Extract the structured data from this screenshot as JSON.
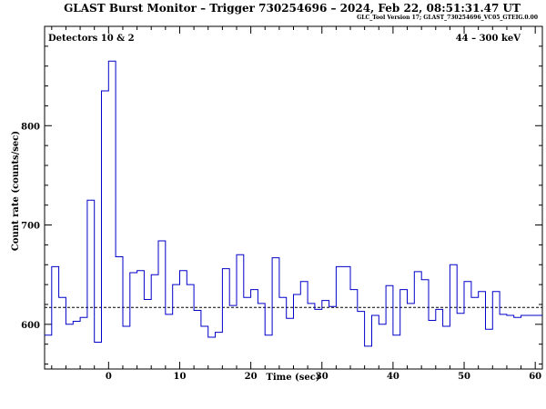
{
  "header": {
    "title": "GLAST Burst Monitor  –  Trigger 730254696  –  2024, Feb 22, 08:51:31.47 UT",
    "version": "GLC_Tool Version 17; GLAST_730254696_VC05_GTEIG.0.00"
  },
  "panel": {
    "detectors_label": "Detectors 10 & 2",
    "energy_label": "44 – 300 keV"
  },
  "colors": {
    "line": "#0000c8",
    "axes": "#000000",
    "background": "#ffffff"
  },
  "chart_data": {
    "type": "line",
    "step": true,
    "title": "GLAST Burst Monitor  –  Trigger 730254696  –  2024, Feb 22, 08:51:31.47 UT",
    "xlabel": "Time (sec)",
    "ylabel": "Count rate (counts/sec)",
    "xlim": [
      -9.0,
      61.0
    ],
    "ylim": [
      555,
      900
    ],
    "xticks": [
      0,
      10,
      20,
      30,
      40,
      50,
      60
    ],
    "yticks": [
      600,
      700,
      800
    ],
    "background_level": 617,
    "bin_edges": [
      -9.0,
      -8.0,
      -7.0,
      -6.0,
      -5.0,
      -4.0,
      -3.0,
      -2.0,
      -1.0,
      0.0,
      1.0,
      2.0,
      3.0,
      4.0,
      5.0,
      6.0,
      7.0,
      8.0,
      9.0,
      10.0,
      11.0,
      12.0,
      13.0,
      14.0,
      15.0,
      16.0,
      17.0,
      18.0,
      19.0,
      20.0,
      21.0,
      22.0,
      23.0,
      24.0,
      25.0,
      26.0,
      27.0,
      28.0,
      29.0,
      30.0,
      31.0,
      32.0,
      33.0,
      34.0,
      35.0,
      36.0,
      37.0,
      38.0,
      39.0,
      40.0,
      41.0,
      42.0,
      43.0,
      44.0,
      45.0,
      46.0,
      47.0,
      48.0,
      49.0,
      50.0,
      51.0,
      52.0,
      53.0,
      54.0,
      55.0,
      56.0,
      57.0,
      58.0,
      59.0,
      60.0,
      61.0
    ],
    "values": [
      589,
      658,
      627,
      600,
      603,
      607,
      725,
      582,
      835,
      865,
      668,
      598,
      652,
      654,
      625,
      650,
      684,
      610,
      640,
      654,
      640,
      614,
      598,
      587,
      592,
      656,
      619,
      670,
      627,
      635,
      621,
      589,
      667,
      627,
      606,
      630,
      643,
      621,
      615,
      624,
      618,
      658,
      658,
      635,
      613,
      578,
      609,
      600,
      639,
      589,
      635,
      621,
      653,
      645,
      604,
      615,
      598,
      660,
      611,
      643,
      627,
      633,
      595,
      633,
      610,
      609,
      607,
      609,
      609,
      609
    ]
  }
}
